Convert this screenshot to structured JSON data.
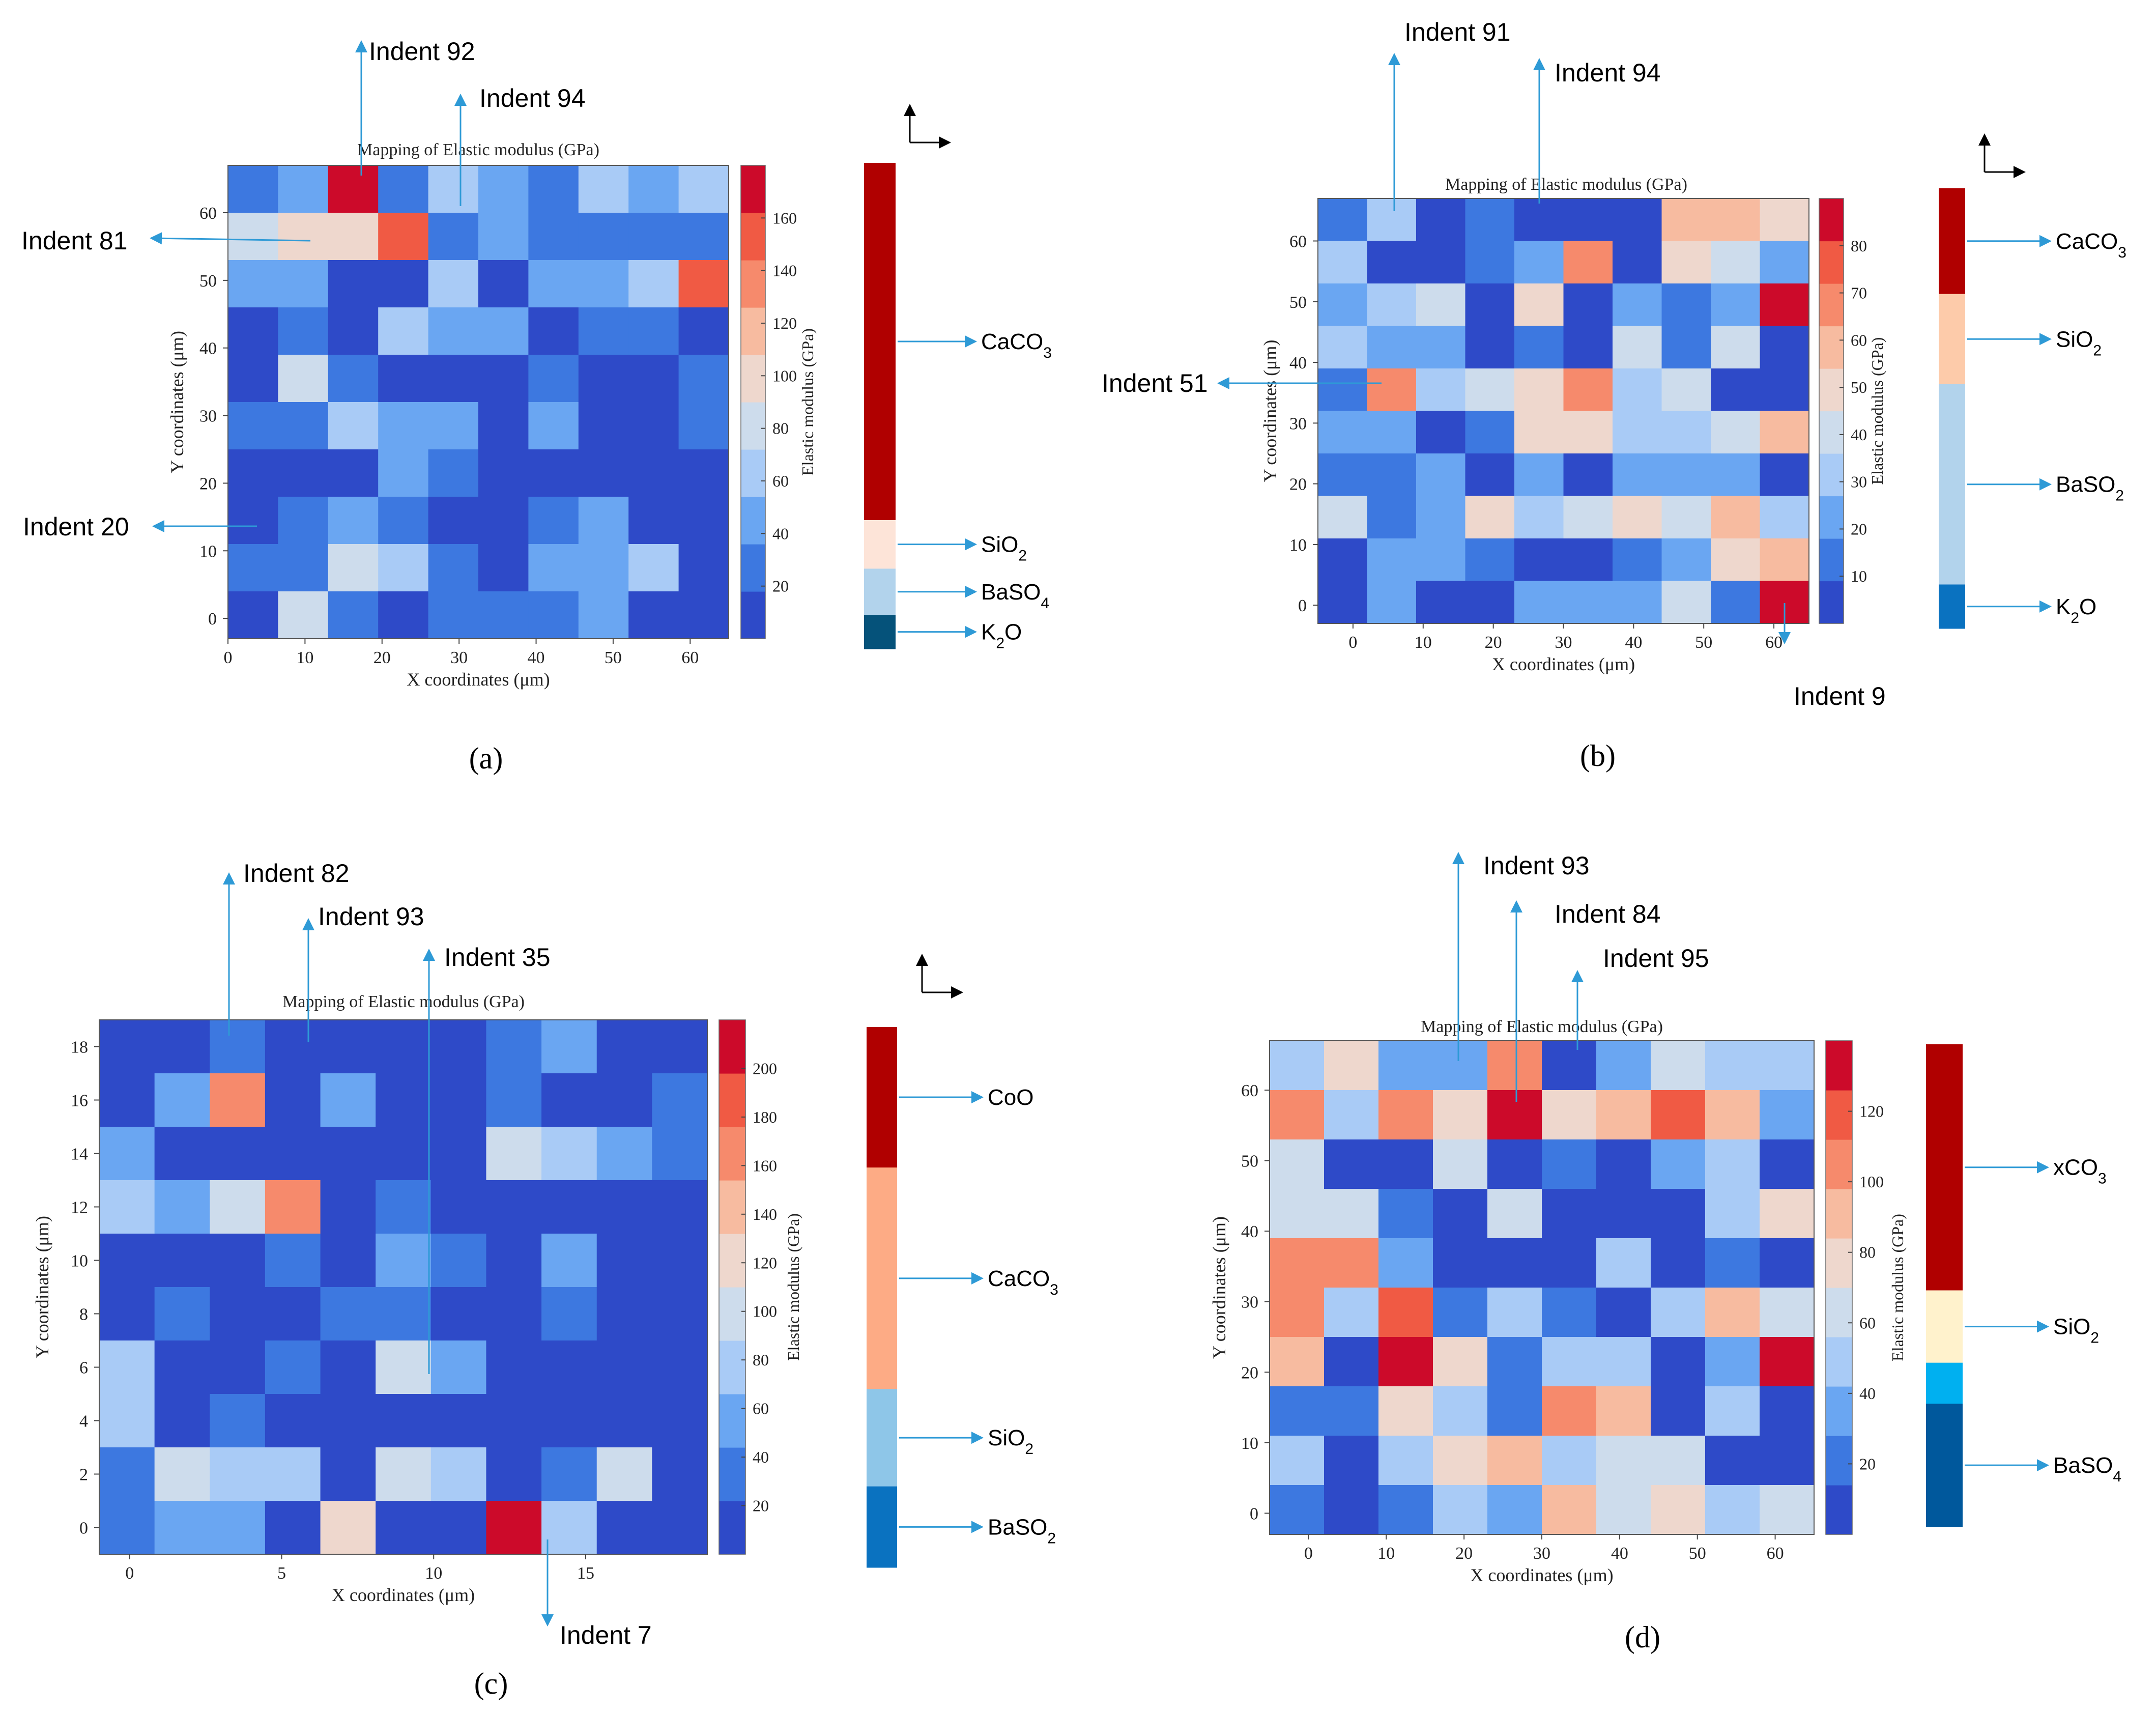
{
  "figure": {
    "colors": {
      "arrow": "#2e9ad6",
      "axis": "#333333",
      "text": "#000000",
      "colormap": [
        "#2e4ac8",
        "#3d78e0",
        "#6aa6f2",
        "#a9cbf6",
        "#cddcec",
        "#eed7cd",
        "#f7bba0",
        "#f68a6c",
        "#f05a44",
        "#cc0a2a"
      ]
    },
    "panels": [
      {
        "id": "a",
        "label": "(a)",
        "chart_data": {
          "type": "heatmap",
          "title": "Mapping of Elastic modulus (GPa)",
          "xlabel": "X coordinates (μm)",
          "ylabel": "Y coordinates (μm)",
          "colorbar_label": "Elastic modulus (GPa)",
          "x_ticks": [
            "0",
            "10",
            "20",
            "30",
            "40",
            "50",
            "60"
          ],
          "y_ticks": [
            "0",
            "10",
            "20",
            "30",
            "40",
            "50",
            "60"
          ],
          "colorbar_ticks": [
            "20",
            "40",
            "60",
            "80",
            "100",
            "120",
            "140",
            "160"
          ],
          "grid_levels": [
            [
              1,
              2,
              9,
              1,
              3,
              2,
              1,
              3,
              2,
              3
            ],
            [
              4,
              5,
              5,
              8,
              1,
              2,
              1,
              1,
              1,
              1
            ],
            [
              2,
              2,
              0,
              0,
              3,
              0,
              2,
              2,
              3,
              8
            ],
            [
              0,
              1,
              0,
              3,
              2,
              2,
              0,
              1,
              1,
              0
            ],
            [
              0,
              4,
              1,
              0,
              0,
              0,
              1,
              0,
              0,
              1
            ],
            [
              1,
              1,
              3,
              2,
              2,
              0,
              2,
              0,
              0,
              1
            ],
            [
              0,
              0,
              0,
              2,
              1,
              0,
              0,
              0,
              0,
              0
            ],
            [
              0,
              1,
              2,
              1,
              0,
              0,
              1,
              2,
              0,
              0
            ],
            [
              1,
              1,
              4,
              3,
              1,
              0,
              2,
              2,
              3,
              0
            ],
            [
              0,
              4,
              1,
              0,
              1,
              1,
              1,
              2,
              0,
              0
            ]
          ],
          "legend_phases": [
            {
              "name": "CaCO",
              "sub": "3",
              "color": "#b00000"
            },
            {
              "name": "SiO",
              "sub": "2",
              "color": "#fde4d8"
            },
            {
              "name": "BaSO",
              "sub": "4",
              "color": "#b2d3ec"
            },
            {
              "name": "K",
              "sub": "2",
              "tail": "O",
              "color": "#05527a"
            }
          ],
          "annotations": [
            "Indent 92",
            "Indent 94",
            "Indent 81",
            "Indent 20"
          ]
        }
      },
      {
        "id": "b",
        "label": "(b)",
        "chart_data": {
          "type": "heatmap",
          "title": "Mapping of Elastic modulus (GPa)",
          "xlabel": "X coordinates (μm)",
          "ylabel": "Y coordinates (μm)",
          "colorbar_label": "Elastic modulus (GPa)",
          "x_ticks": [
            "0",
            "10",
            "20",
            "30",
            "40",
            "50",
            "60"
          ],
          "y_ticks": [
            "0",
            "10",
            "20",
            "30",
            "40",
            "50",
            "60"
          ],
          "colorbar_ticks": [
            "10",
            "20",
            "30",
            "40",
            "50",
            "60",
            "70",
            "80"
          ],
          "grid_levels": [
            [
              1,
              3,
              0,
              1,
              0,
              0,
              0,
              6,
              6,
              5
            ],
            [
              3,
              0,
              0,
              1,
              2,
              7,
              0,
              5,
              4,
              2
            ],
            [
              2,
              3,
              4,
              0,
              5,
              0,
              2,
              1,
              2,
              9
            ],
            [
              3,
              2,
              2,
              0,
              1,
              0,
              4,
              1,
              4,
              0
            ],
            [
              1,
              7,
              3,
              4,
              5,
              7,
              3,
              4,
              0,
              0
            ],
            [
              2,
              2,
              0,
              1,
              5,
              5,
              3,
              3,
              4,
              6
            ],
            [
              1,
              1,
              2,
              0,
              2,
              0,
              2,
              2,
              2,
              0
            ],
            [
              4,
              1,
              2,
              5,
              3,
              4,
              5,
              4,
              6,
              3
            ],
            [
              0,
              2,
              2,
              1,
              0,
              0,
              1,
              2,
              5,
              6
            ],
            [
              0,
              2,
              0,
              0,
              2,
              2,
              2,
              4,
              1,
              9
            ]
          ],
          "legend_phases": [
            {
              "name": "CaCO",
              "sub": "3",
              "color": "#b00000"
            },
            {
              "name": "SiO",
              "sub": "2",
              "color": "#fdcbaa"
            },
            {
              "name": "BaSO",
              "sub": "2",
              "color": "#b2d3ec"
            },
            {
              "name": "K",
              "sub": "2",
              "tail": "O",
              "color": "#0a72c0"
            }
          ],
          "annotations": [
            "Indent 91",
            "Indent 94",
            "Indent 51",
            "Indent 9"
          ]
        }
      },
      {
        "id": "c",
        "label": "(c)",
        "chart_data": {
          "type": "heatmap",
          "title": "Mapping of Elastic modulus (GPa)",
          "xlabel": "X coordinates (μm)",
          "ylabel": "Y coordinates (μm)",
          "colorbar_label": "Elastic modulus (GPa)",
          "x_ticks": [
            "0",
            "5",
            "10",
            "15"
          ],
          "y_ticks": [
            "0",
            "2",
            "4",
            "6",
            "8",
            "10",
            "12",
            "14",
            "16",
            "18"
          ],
          "colorbar_ticks": [
            "20",
            "40",
            "60",
            "80",
            "100",
            "120",
            "140",
            "160",
            "180",
            "200"
          ],
          "grid_levels": [
            [
              0,
              0,
              1,
              0,
              0,
              0,
              0,
              1,
              2,
              0,
              0
            ],
            [
              0,
              2,
              7,
              0,
              2,
              0,
              0,
              1,
              0,
              0,
              1
            ],
            [
              2,
              0,
              0,
              0,
              0,
              0,
              0,
              4,
              3,
              2,
              1
            ],
            [
              3,
              2,
              4,
              7,
              0,
              1,
              0,
              0,
              0,
              0,
              0
            ],
            [
              0,
              0,
              0,
              1,
              0,
              2,
              1,
              0,
              2,
              0,
              0
            ],
            [
              0,
              1,
              0,
              0,
              1,
              1,
              0,
              0,
              1,
              0,
              0
            ],
            [
              3,
              0,
              0,
              1,
              0,
              4,
              2,
              0,
              0,
              0,
              0
            ],
            [
              3,
              0,
              1,
              0,
              0,
              0,
              0,
              0,
              0,
              0,
              0
            ],
            [
              1,
              4,
              3,
              3,
              0,
              4,
              3,
              0,
              1,
              4,
              0
            ],
            [
              1,
              2,
              2,
              0,
              5,
              0,
              0,
              9,
              3,
              0,
              0
            ]
          ],
          "legend_phases": [
            {
              "name": "CoO",
              "sub": "",
              "color": "#b00000"
            },
            {
              "name": "CaCO",
              "sub": "3",
              "color": "#fdab85"
            },
            {
              "name": "SiO",
              "sub": "2",
              "color": "#8ec6e8"
            },
            {
              "name": "BaSO",
              "sub": "2",
              "color": "#0a72c0"
            }
          ],
          "annotations": [
            "Indent 82",
            "Indent 93",
            "Indent 35",
            "Indent 7"
          ]
        }
      },
      {
        "id": "d",
        "label": "(d)",
        "chart_data": {
          "type": "heatmap",
          "title": "Mapping of Elastic modulus (GPa)",
          "xlabel": "X coordinates (μm)",
          "ylabel": "Y coordinates (μm)",
          "colorbar_label": "Elastic modulus (GPa)",
          "x_ticks": [
            "0",
            "10",
            "20",
            "30",
            "40",
            "50",
            "60"
          ],
          "y_ticks": [
            "0",
            "10",
            "20",
            "30",
            "40",
            "50",
            "60"
          ],
          "colorbar_ticks": [
            "20",
            "40",
            "60",
            "80",
            "100",
            "120"
          ],
          "grid_levels": [
            [
              3,
              5,
              2,
              2,
              7,
              0,
              2,
              4,
              3,
              3
            ],
            [
              7,
              3,
              7,
              5,
              9,
              5,
              6,
              8,
              6,
              2
            ],
            [
              4,
              0,
              0,
              4,
              0,
              1,
              0,
              2,
              3,
              0
            ],
            [
              4,
              4,
              1,
              0,
              4,
              0,
              0,
              0,
              3,
              5
            ],
            [
              7,
              7,
              2,
              0,
              0,
              0,
              3,
              0,
              1,
              0
            ],
            [
              7,
              3,
              8,
              1,
              3,
              1,
              0,
              3,
              6,
              4
            ],
            [
              6,
              0,
              9,
              5,
              1,
              3,
              3,
              0,
              2,
              9
            ],
            [
              1,
              1,
              5,
              3,
              1,
              7,
              6,
              0,
              3,
              0
            ],
            [
              3,
              0,
              3,
              5,
              6,
              3,
              4,
              4,
              0,
              0
            ],
            [
              1,
              0,
              1,
              3,
              2,
              6,
              4,
              5,
              3,
              4
            ]
          ],
          "legend_phases": [
            {
              "name": "xCO",
              "sub": "3",
              "color": "#b00000"
            },
            {
              "name": "SiO",
              "sub": "2",
              "color": "#fff2cc"
            },
            {
              "name": "",
              "sub": "",
              "color": "#00b0f0"
            },
            {
              "name": "BaSO",
              "sub": "4",
              "color": "#00589c"
            }
          ],
          "annotations": [
            "Indent 93",
            "Indent 84",
            "Indent 95"
          ]
        }
      }
    ]
  }
}
